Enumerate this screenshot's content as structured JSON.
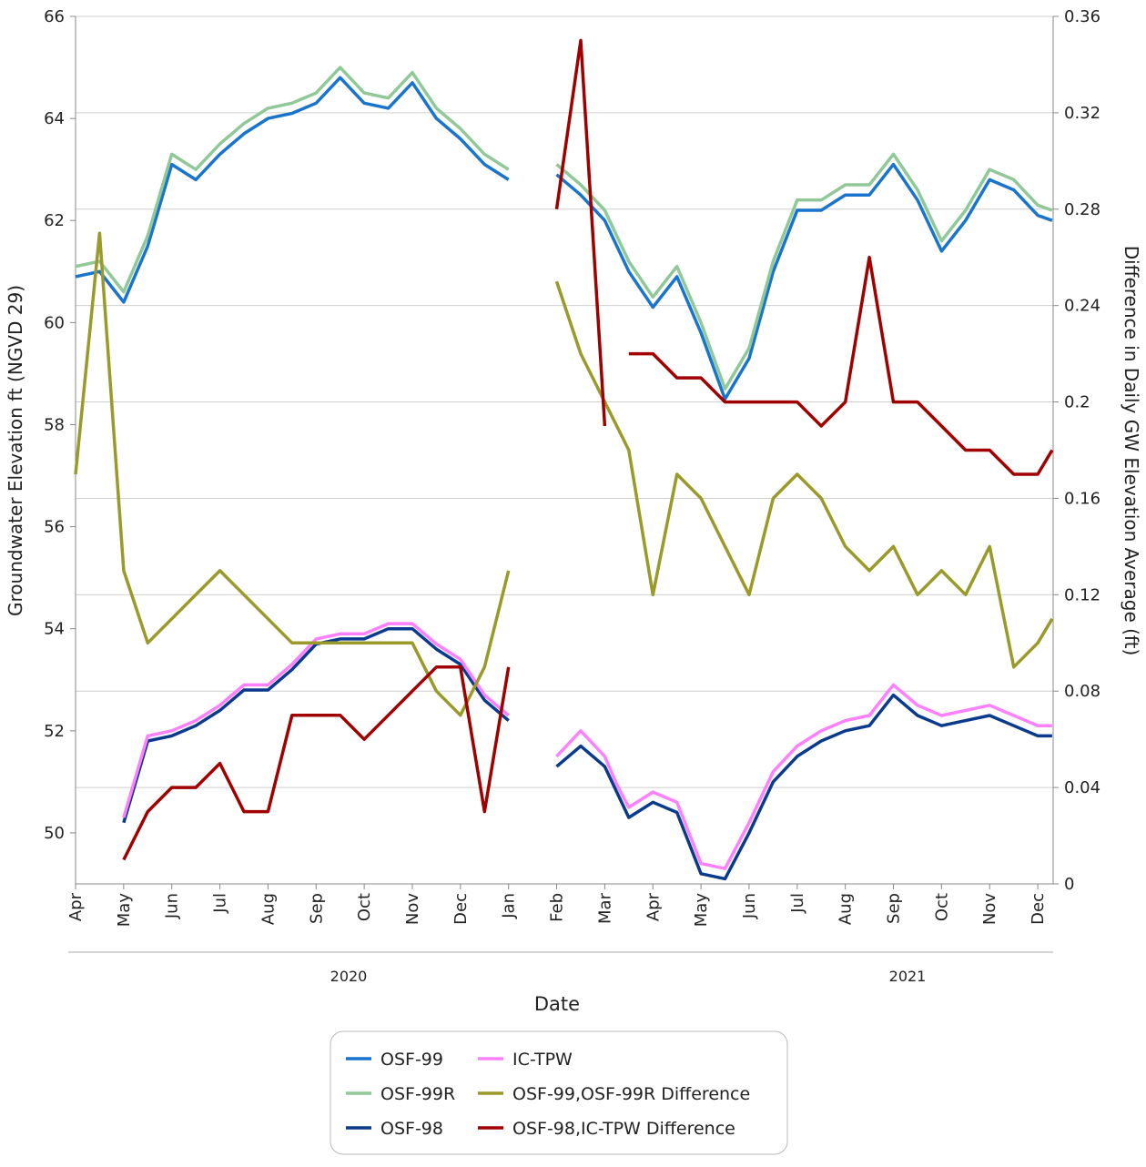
{
  "chart_data": {
    "type": "line",
    "x_label": "Date",
    "y_label": "Groundwater Elevation ft (NGVD 29)",
    "y2_label": "Difference in Daily GW Elevation Average (ft)",
    "x": [
      0,
      0.5,
      1,
      1.5,
      2,
      2.5,
      3,
      3.5,
      4,
      4.5,
      5,
      5.5,
      6,
      6.5,
      7,
      7.5,
      8,
      8.5,
      9,
      9.5,
      10,
      10.5,
      11,
      11.25,
      11.5,
      12,
      12.5,
      13,
      13.5,
      14,
      14.5,
      15,
      15.5,
      16,
      16.5,
      17,
      17.5,
      18,
      18.5,
      19,
      19.5,
      20,
      20.3
    ],
    "xlim": [
      0,
      20.32
    ],
    "xticks": [
      {
        "value": 0,
        "label": "Apr"
      },
      {
        "value": 1,
        "label": "May"
      },
      {
        "value": 2,
        "label": "Jun"
      },
      {
        "value": 3,
        "label": "Jul"
      },
      {
        "value": 4,
        "label": "Aug"
      },
      {
        "value": 5,
        "label": "Sep"
      },
      {
        "value": 6,
        "label": "Oct"
      },
      {
        "value": 7,
        "label": "Nov"
      },
      {
        "value": 8,
        "label": "Dec"
      },
      {
        "value": 9,
        "label": "Jan"
      },
      {
        "value": 10,
        "label": "Feb"
      },
      {
        "value": 11,
        "label": "Mar"
      },
      {
        "value": 12,
        "label": "Apr"
      },
      {
        "value": 13,
        "label": "May"
      },
      {
        "value": 14,
        "label": "Jun"
      },
      {
        "value": 15,
        "label": "Jul"
      },
      {
        "value": 16,
        "label": "Aug"
      },
      {
        "value": 17,
        "label": "Sep"
      },
      {
        "value": 18,
        "label": "Oct"
      },
      {
        "value": 19,
        "label": "Nov"
      },
      {
        "value": 20,
        "label": "Dec"
      }
    ],
    "year_labels": [
      "2020",
      "2021"
    ],
    "ylim": [
      49,
      66
    ],
    "yticks": [
      50,
      52,
      54,
      56,
      58,
      60,
      62,
      64,
      66
    ],
    "y2lim": [
      0,
      0.36
    ],
    "y2ticks": [
      0,
      0.04,
      0.08,
      0.12,
      0.16,
      0.2,
      0.24,
      0.28,
      0.32,
      0.36
    ],
    "grid": true,
    "legend": "bottom",
    "series": [
      {
        "name": "OSF-99",
        "color": "#1874cd",
        "values": [
          60.9,
          61.0,
          60.4,
          61.5,
          63.1,
          62.8,
          63.3,
          63.7,
          64.0,
          64.1,
          64.3,
          64.8,
          64.3,
          64.2,
          64.7,
          64.0,
          63.6,
          63.1,
          62.8,
          null,
          62.9,
          62.5,
          62.0,
          61.5,
          61.0,
          60.3,
          60.9,
          59.8,
          58.5,
          59.3,
          61.0,
          62.2,
          62.2,
          62.5,
          62.5,
          63.1,
          62.4,
          61.4,
          62.0,
          62.8,
          62.6,
          62.1,
          62.0
        ]
      },
      {
        "name": "OSF-99R",
        "color": "#90c898",
        "values": [
          61.1,
          61.2,
          60.6,
          61.7,
          63.3,
          63.0,
          63.5,
          63.9,
          64.2,
          64.3,
          64.5,
          65.0,
          64.5,
          64.4,
          64.9,
          64.2,
          63.8,
          63.3,
          63.0,
          null,
          63.1,
          62.7,
          62.2,
          61.7,
          61.2,
          60.5,
          61.1,
          60.0,
          58.7,
          59.5,
          61.2,
          62.4,
          62.4,
          62.7,
          62.7,
          63.3,
          62.6,
          61.6,
          62.2,
          63.0,
          62.8,
          62.3,
          62.2
        ]
      },
      {
        "name": "OSF-98",
        "color": "#0a3a8c",
        "values": [
          null,
          null,
          50.2,
          51.8,
          51.9,
          52.1,
          52.4,
          52.8,
          52.8,
          53.2,
          53.7,
          53.8,
          53.8,
          54.0,
          54.0,
          53.6,
          53.3,
          52.6,
          52.2,
          null,
          51.3,
          51.7,
          51.3,
          50.8,
          50.3,
          50.6,
          50.4,
          49.2,
          49.1,
          50.0,
          51.0,
          51.5,
          51.8,
          52.0,
          52.1,
          52.7,
          52.3,
          52.1,
          52.2,
          52.3,
          52.1,
          51.9,
          51.9
        ]
      },
      {
        "name": "IC-TPW",
        "color": "#ff80ff",
        "values": [
          null,
          null,
          50.3,
          51.9,
          52.0,
          52.2,
          52.5,
          52.9,
          52.9,
          53.3,
          53.8,
          53.9,
          53.9,
          54.1,
          54.1,
          53.7,
          53.4,
          52.7,
          52.3,
          null,
          51.5,
          52.0,
          51.5,
          50.95,
          50.5,
          50.8,
          50.6,
          49.4,
          49.3,
          50.2,
          51.2,
          51.7,
          52.0,
          52.2,
          52.3,
          52.9,
          52.5,
          52.3,
          52.4,
          52.5,
          52.3,
          52.1,
          52.1
        ]
      },
      {
        "name": "OSF-99,OSF-99R Difference",
        "color": "#9a9a2a",
        "axis": "y2",
        "values": [
          0.17,
          0.27,
          0.13,
          0.1,
          0.11,
          0.12,
          0.13,
          0.12,
          0.11,
          0.1,
          0.1,
          0.1,
          0.1,
          0.1,
          0.1,
          0.08,
          0.07,
          0.09,
          0.13,
          null,
          0.25,
          0.22,
          0.2,
          0.19,
          0.18,
          0.12,
          0.17,
          0.16,
          0.14,
          0.12,
          0.16,
          0.17,
          0.16,
          0.14,
          0.13,
          0.14,
          0.12,
          0.13,
          0.12,
          0.14,
          0.09,
          0.1,
          0.11
        ]
      },
      {
        "name": "OSF-98,IC-TPW Difference",
        "color": "#a00000",
        "axis": "y2",
        "values": [
          null,
          null,
          0.01,
          0.03,
          0.04,
          0.04,
          0.05,
          0.03,
          0.03,
          0.07,
          0.07,
          0.07,
          0.06,
          0.07,
          0.08,
          0.09,
          0.09,
          0.03,
          0.09,
          null,
          0.28,
          0.35,
          0.19,
          null,
          0.22,
          0.22,
          0.21,
          0.21,
          0.2,
          0.2,
          0.2,
          0.2,
          0.19,
          0.2,
          0.26,
          0.2,
          0.2,
          0.19,
          0.18,
          0.18,
          0.17,
          0.17,
          0.18
        ]
      }
    ]
  }
}
